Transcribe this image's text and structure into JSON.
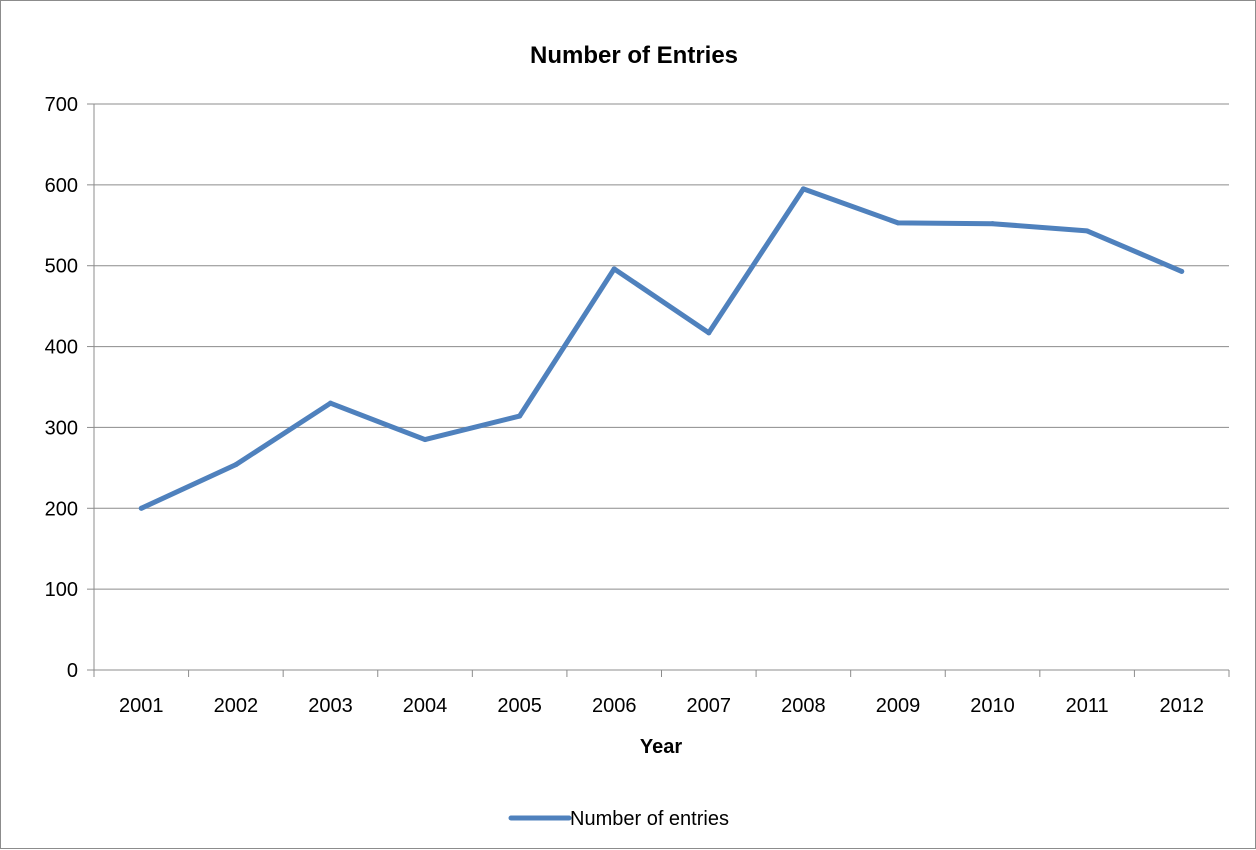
{
  "chart_data": {
    "type": "line",
    "title": "Number of Entries",
    "xlabel": "Year",
    "ylabel": "",
    "categories": [
      "2001",
      "2002",
      "2003",
      "2004",
      "2005",
      "2006",
      "2007",
      "2008",
      "2009",
      "2010",
      "2011",
      "2012"
    ],
    "series": [
      {
        "name": "Number of entries",
        "color": "#4f81bd",
        "values": [
          200,
          254,
          330,
          285,
          314,
          496,
          417,
          595,
          553,
          552,
          543,
          493
        ]
      }
    ],
    "ylim": [
      0,
      700
    ],
    "yticks": [
      0,
      100,
      200,
      300,
      400,
      500,
      600,
      700
    ],
    "grid": true,
    "legend_position": "bottom"
  }
}
